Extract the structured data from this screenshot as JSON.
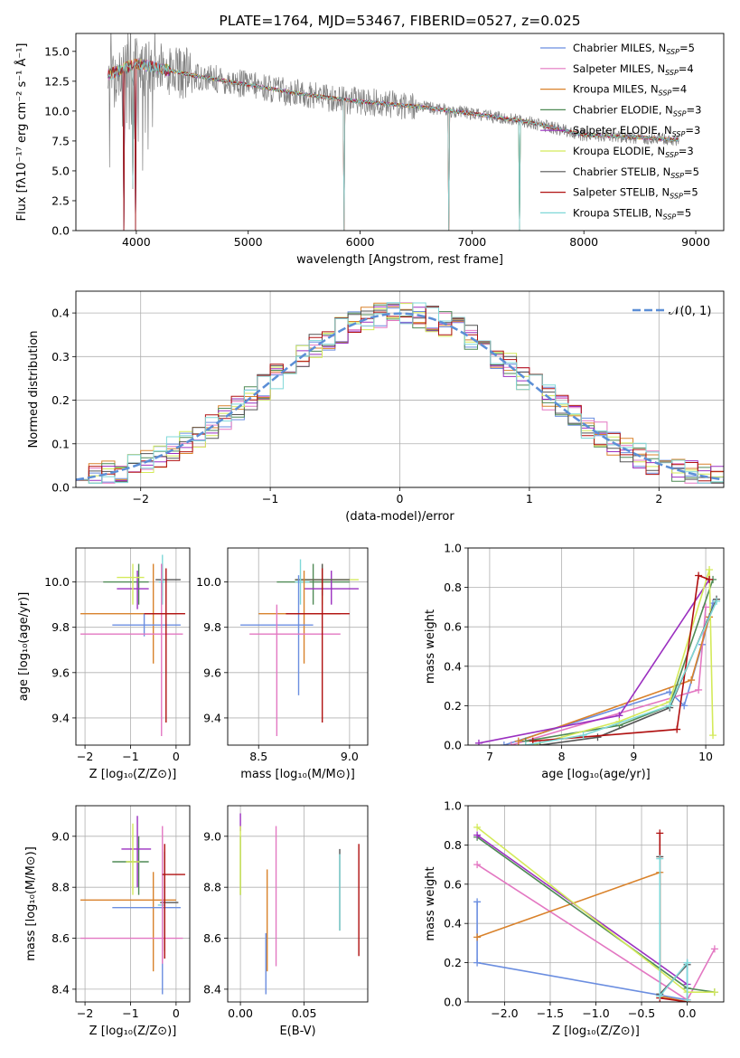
{
  "chart_data": [
    {
      "id": "spectrum",
      "type": "line",
      "title": "PLATE=1764, MJD=53467, FIBERID=0527, z=0.025",
      "xlabel": "wavelength [Angstrom, rest frame]",
      "ylabel": "Flux [fλ10⁻¹⁷ erg cm⁻² s⁻¹ Å⁻¹]",
      "xlim": [
        3460,
        9250
      ],
      "ylim": [
        0,
        16.5
      ],
      "xticks": [
        4000,
        5000,
        6000,
        7000,
        8000,
        9000
      ],
      "yticks": [
        0.0,
        2.5,
        5.0,
        7.5,
        10.0,
        12.5,
        15.0
      ],
      "legend_loc": "upper right",
      "continuum": {
        "x": [
          3740,
          3850,
          4000,
          4200,
          4500,
          5000,
          5500,
          6000,
          6500,
          7000,
          7500,
          8000,
          8500,
          8850
        ],
        "y": [
          13.0,
          13.4,
          14.0,
          13.6,
          13.0,
          12.2,
          11.4,
          10.8,
          10.4,
          9.8,
          9.1,
          8.0,
          7.8,
          7.6
        ]
      },
      "dips": [
        {
          "x": 3890,
          "to": 0
        },
        {
          "x": 3970,
          "to": 3.5
        },
        {
          "x": 3995,
          "to": 0
        },
        {
          "x": 5860,
          "to": 0
        },
        {
          "x": 6790,
          "to": 0
        },
        {
          "x": 7425,
          "to": 0
        }
      ],
      "series": [
        {
          "name": "Chabrier MILES, N_SSP=5",
          "label": "Chabrier MILES, N",
          "sub": "SSP",
          "eq": "=5",
          "color": "#6b8ee0"
        },
        {
          "name": "Salpeter MILES, N_SSP=4",
          "label": "Salpeter MILES, N",
          "sub": "SSP",
          "eq": "=4",
          "color": "#e377c2"
        },
        {
          "name": "Kroupa MILES, N_SSP=4",
          "label": "Kroupa MILES, N",
          "sub": "SSP",
          "eq": "=4",
          "color": "#d9822b"
        },
        {
          "name": "Chabrier ELODIE, N_SSP=3",
          "label": "Chabrier ELODIE, N",
          "sub": "SSP",
          "eq": "=3",
          "color": "#4f8a55"
        },
        {
          "name": "Salpeter ELODIE, N_SSP=3",
          "label": "Salpeter ELODIE, N",
          "sub": "SSP",
          "eq": "=3",
          "color": "#9b30c0"
        },
        {
          "name": "Kroupa ELODIE, N_SSP=3",
          "label": "Kroupa ELODIE, N",
          "sub": "SSP",
          "eq": "=3",
          "color": "#d4ea5a"
        },
        {
          "name": "Chabrier STELIB, N_SSP=5",
          "label": "Chabrier STELIB, N",
          "sub": "SSP",
          "eq": "=5",
          "color": "#555555"
        },
        {
          "name": "Salpeter STELIB, N_SSP=5",
          "label": "Salpeter STELIB, N",
          "sub": "SSP",
          "eq": "=5",
          "color": "#b01010"
        },
        {
          "name": "Kroupa STELIB, N_SSP=5",
          "label": "Kroupa STELIB, N",
          "sub": "SSP",
          "eq": "=5",
          "color": "#7fd8d8"
        }
      ],
      "data_color": "#808080"
    },
    {
      "id": "residuals",
      "type": "step",
      "xlabel": "(data-model)/error",
      "ylabel": "Normed distribution",
      "xlim": [
        -2.5,
        2.5
      ],
      "ylim": [
        0,
        0.45
      ],
      "xticks": [
        -2,
        -1,
        0,
        1,
        2
      ],
      "yticks": [
        0.0,
        0.1,
        0.2,
        0.3,
        0.4
      ],
      "grid": true,
      "legend": "𝒩(0, 1)",
      "normal_color": "#5b8ed6"
    },
    {
      "id": "age_vs_Z",
      "type": "errorbar",
      "xlabel": "Z [log₁₀(Z/Z⊙)]",
      "ylabel": "age  [log₁₀(age/yr)]",
      "xlim": [
        -2.2,
        0.3
      ],
      "ylim": [
        9.28,
        10.15
      ],
      "xticks": [
        -2,
        -1,
        0
      ],
      "yticks": [
        9.4,
        9.6,
        9.8,
        10.0
      ],
      "grid": true,
      "points": [
        {
          "x": -0.82,
          "xlo": -1.6,
          "xhi": -0.6,
          "y": 10.0,
          "ylo": 9.9,
          "yhi": 10.08,
          "c": "#4f8a55"
        },
        {
          "x": -0.85,
          "xlo": -1.3,
          "xhi": -0.6,
          "y": 9.97,
          "ylo": 9.88,
          "yhi": 10.05,
          "c": "#9b30c0"
        },
        {
          "x": -0.95,
          "xlo": -1.3,
          "xhi": -0.7,
          "y": 10.02,
          "ylo": 9.9,
          "yhi": 10.08,
          "c": "#d4ea5a"
        },
        {
          "x": -0.3,
          "xlo": -0.45,
          "xhi": 0.1,
          "y": 10.01,
          "ylo": 9.94,
          "yhi": 10.08,
          "c": "#555555"
        },
        {
          "x": -0.3,
          "xlo": -0.38,
          "xhi": -0.25,
          "y": 10.0,
          "ylo": 9.9,
          "yhi": 10.12,
          "c": "#7fd8d8"
        },
        {
          "x": -0.5,
          "xlo": -2.1,
          "xhi": 0.0,
          "y": 9.86,
          "ylo": 9.64,
          "yhi": 10.08,
          "c": "#d9822b"
        },
        {
          "x": -0.7,
          "xlo": -1.4,
          "xhi": 0.1,
          "y": 9.81,
          "ylo": 9.76,
          "yhi": 9.86,
          "c": "#6b8ee0"
        },
        {
          "x": -0.32,
          "xlo": -2.1,
          "xhi": 0.15,
          "y": 9.77,
          "ylo": 9.32,
          "yhi": 10.08,
          "c": "#e377c2"
        },
        {
          "x": -0.22,
          "xlo": -0.7,
          "xhi": 0.2,
          "y": 9.86,
          "ylo": 9.38,
          "yhi": 10.06,
          "c": "#b01010"
        }
      ]
    },
    {
      "id": "age_vs_mass",
      "type": "errorbar",
      "xlabel": "mass [log₁₀(M/M⊙)]",
      "ylabel": "",
      "xlim": [
        8.33,
        9.1
      ],
      "ylim": [
        9.28,
        10.15
      ],
      "xticks": [
        8.5,
        9.0
      ],
      "yticks": [
        9.4,
        9.6,
        9.8,
        10.0
      ],
      "grid": true,
      "points": [
        {
          "x": 8.8,
          "xlo": 8.6,
          "xhi": 9.0,
          "y": 10.0,
          "ylo": 9.9,
          "yhi": 10.08,
          "c": "#4f8a55"
        },
        {
          "x": 8.9,
          "xlo": 8.75,
          "xhi": 9.05,
          "y": 9.97,
          "ylo": 9.9,
          "yhi": 10.05,
          "c": "#9b30c0"
        },
        {
          "x": 8.85,
          "xlo": 8.7,
          "xhi": 9.05,
          "y": 10.01,
          "ylo": 9.9,
          "yhi": 10.08,
          "c": "#d4ea5a"
        },
        {
          "x": 8.85,
          "xlo": 8.7,
          "xhi": 9.0,
          "y": 10.01,
          "ylo": 9.94,
          "yhi": 10.08,
          "c": "#555555"
        },
        {
          "x": 8.73,
          "xlo": 8.7,
          "xhi": 8.78,
          "y": 10.0,
          "ylo": 9.9,
          "yhi": 10.1,
          "c": "#7fd8d8"
        },
        {
          "x": 8.75,
          "xlo": 8.5,
          "xhi": 8.95,
          "y": 9.86,
          "ylo": 9.64,
          "yhi": 10.05,
          "c": "#d9822b"
        },
        {
          "x": 8.72,
          "xlo": 8.4,
          "xhi": 8.8,
          "y": 9.81,
          "ylo": 9.5,
          "yhi": 10.03,
          "c": "#6b8ee0"
        },
        {
          "x": 8.6,
          "xlo": 8.45,
          "xhi": 8.95,
          "y": 9.77,
          "ylo": 9.32,
          "yhi": 9.9,
          "c": "#e377c2"
        },
        {
          "x": 8.85,
          "xlo": 8.65,
          "xhi": 9.0,
          "y": 9.86,
          "ylo": 9.38,
          "yhi": 10.06,
          "c": "#b01010"
        }
      ]
    },
    {
      "id": "mass_weight_vs_age",
      "type": "line",
      "xlabel": "age  [log₁₀(age/yr)]",
      "ylabel": "mass weight",
      "xlim": [
        6.7,
        10.25
      ],
      "ylim": [
        0,
        1.0
      ],
      "xticks": [
        7,
        8,
        9,
        10
      ],
      "yticks": [
        0.0,
        0.2,
        0.4,
        0.6,
        0.8,
        1.0
      ],
      "grid": true,
      "series": [
        {
          "c": "#6b8ee0",
          "x": [
            7.2,
            9.5,
            9.7,
            9.95,
            10.1
          ],
          "y": [
            0.0,
            0.27,
            0.2,
            0.51,
            0.72
          ]
        },
        {
          "c": "#e377c2",
          "x": [
            7.3,
            9.9,
            10.0
          ],
          "y": [
            0.0,
            0.28,
            0.7
          ]
        },
        {
          "c": "#d9822b",
          "x": [
            7.4,
            9.8,
            10.05
          ],
          "y": [
            0.02,
            0.33,
            0.65
          ]
        },
        {
          "c": "#4f8a55",
          "x": [
            7.5,
            8.8,
            9.5,
            10.1
          ],
          "y": [
            0.02,
            0.1,
            0.2,
            0.84
          ]
        },
        {
          "c": "#9b30c0",
          "x": [
            6.85,
            8.8,
            10.05
          ],
          "y": [
            0.01,
            0.15,
            0.84
          ]
        },
        {
          "c": "#d4ea5a",
          "x": [
            7.6,
            8.8,
            9.5,
            10.05,
            10.1
          ],
          "y": [
            0.0,
            0.12,
            0.22,
            0.89,
            0.05
          ]
        },
        {
          "c": "#555555",
          "x": [
            7.7,
            8.5,
            9.5,
            10.15
          ],
          "y": [
            0.0,
            0.04,
            0.19,
            0.74
          ]
        },
        {
          "c": "#b01010",
          "x": [
            7.6,
            9.6,
            9.9,
            10.05
          ],
          "y": [
            0.02,
            0.08,
            0.86,
            0.84
          ]
        },
        {
          "c": "#7fd8d8",
          "x": [
            7.5,
            8.3,
            9.5,
            10.15
          ],
          "y": [
            0.0,
            0.05,
            0.2,
            0.73
          ]
        }
      ]
    },
    {
      "id": "mass_vs_Z",
      "type": "errorbar",
      "xlabel": "Z [log₁₀(Z/Z⊙)]",
      "ylabel": "mass [log₁₀(M/M⊙)]",
      "xlim": [
        -2.2,
        0.3
      ],
      "ylim": [
        8.35,
        9.12
      ],
      "xticks": [
        -2,
        -1,
        0
      ],
      "yticks": [
        8.4,
        8.6,
        8.8,
        9.0
      ],
      "grid": true,
      "points": [
        {
          "x": -0.82,
          "xlo": -1.4,
          "xhi": -0.6,
          "y": 8.9,
          "ylo": 8.77,
          "yhi": 9.0,
          "c": "#4f8a55"
        },
        {
          "x": -0.85,
          "xlo": -1.2,
          "xhi": -0.55,
          "y": 8.95,
          "ylo": 8.8,
          "yhi": 9.08,
          "c": "#9b30c0"
        },
        {
          "x": -0.95,
          "xlo": -1.1,
          "xhi": -0.8,
          "y": 8.9,
          "ylo": 8.77,
          "yhi": 9.05,
          "c": "#d4ea5a"
        },
        {
          "x": -0.25,
          "xlo": -0.35,
          "xhi": 0.05,
          "y": 8.74,
          "ylo": 8.55,
          "yhi": 8.94,
          "c": "#555555"
        },
        {
          "x": -0.3,
          "xlo": -0.4,
          "xhi": -0.25,
          "y": 8.73,
          "ylo": 8.62,
          "yhi": 8.95,
          "c": "#7fd8d8"
        },
        {
          "x": -0.5,
          "xlo": -2.1,
          "xhi": 0.0,
          "y": 8.75,
          "ylo": 8.47,
          "yhi": 8.86,
          "c": "#d9822b"
        },
        {
          "x": -0.3,
          "xlo": -1.4,
          "xhi": 0.1,
          "y": 8.72,
          "ylo": 8.38,
          "yhi": 8.75,
          "c": "#6b8ee0"
        },
        {
          "x": -0.3,
          "xlo": -2.1,
          "xhi": 0.15,
          "y": 8.6,
          "ylo": 8.5,
          "yhi": 9.04,
          "c": "#e377c2"
        },
        {
          "x": -0.25,
          "xlo": -0.3,
          "xhi": 0.2,
          "y": 8.85,
          "ylo": 8.52,
          "yhi": 8.97,
          "c": "#b01010"
        }
      ]
    },
    {
      "id": "mass_vs_ebv",
      "type": "errorbar",
      "xlabel": "E(B-V)",
      "ylabel": "",
      "xlim": [
        -0.01,
        0.1
      ],
      "ylim": [
        8.35,
        9.12
      ],
      "xticks": [
        0.0,
        0.05
      ],
      "yticks": [
        8.4,
        8.6,
        8.8,
        9.0
      ],
      "grid": true,
      "points": [
        {
          "x": 0.0,
          "xlo": 0.0,
          "xhi": 0.0,
          "y": 8.9,
          "ylo": 8.77,
          "yhi": 9.0,
          "c": "#4f8a55"
        },
        {
          "x": 0.0,
          "xlo": 0.0,
          "xhi": 0.0,
          "y": 9.05,
          "ylo": 9.02,
          "yhi": 9.09,
          "c": "#9b30c0"
        },
        {
          "x": 0.0,
          "xlo": 0.0,
          "xhi": 0.0,
          "y": 8.9,
          "ylo": 8.77,
          "yhi": 9.04,
          "c": "#d4ea5a"
        },
        {
          "x": 0.078,
          "xlo": 0.078,
          "xhi": 0.078,
          "y": 8.8,
          "ylo": 8.63,
          "yhi": 8.95,
          "c": "#555555"
        },
        {
          "x": 0.078,
          "xlo": 0.078,
          "xhi": 0.078,
          "y": 8.78,
          "ylo": 8.63,
          "yhi": 8.93,
          "c": "#7fd8d8"
        },
        {
          "x": 0.021,
          "xlo": 0.021,
          "xhi": 0.021,
          "y": 8.65,
          "ylo": 8.47,
          "yhi": 8.87,
          "c": "#d9822b"
        },
        {
          "x": 0.02,
          "xlo": 0.02,
          "xhi": 0.02,
          "y": 8.5,
          "ylo": 8.38,
          "yhi": 8.62,
          "c": "#6b8ee0"
        },
        {
          "x": 0.028,
          "xlo": 0.028,
          "xhi": 0.028,
          "y": 8.7,
          "ylo": 8.49,
          "yhi": 9.04,
          "c": "#e377c2"
        },
        {
          "x": 0.093,
          "xlo": 0.093,
          "xhi": 0.093,
          "y": 8.75,
          "ylo": 8.53,
          "yhi": 8.97,
          "c": "#b01010"
        }
      ]
    },
    {
      "id": "mass_weight_vs_Z",
      "type": "line",
      "xlabel": "Z [log₁₀(Z/Z⊙)]",
      "ylabel": "mass weight",
      "xlim": [
        -2.4,
        0.4
      ],
      "ylim": [
        0,
        1.0
      ],
      "xticks": [
        -2.0,
        -1.5,
        -1.0,
        -0.5,
        0.0
      ],
      "yticks": [
        0.0,
        0.2,
        0.4,
        0.6,
        0.8,
        1.0
      ],
      "grid": true,
      "series": [
        {
          "c": "#6b8ee0",
          "x": [
            -2.3,
            -2.3,
            0.0,
            0.0
          ],
          "y": [
            0.51,
            0.2,
            0.01,
            0.2
          ]
        },
        {
          "c": "#e377c2",
          "x": [
            -2.3,
            0.0,
            0.3
          ],
          "y": [
            0.7,
            0.01,
            0.27
          ]
        },
        {
          "c": "#d9822b",
          "x": [
            -2.3,
            -0.3,
            -0.3,
            0.0
          ],
          "y": [
            0.33,
            0.66,
            0.03,
            0.0
          ]
        },
        {
          "c": "#4f8a55",
          "x": [
            -2.3,
            0.0,
            0.3
          ],
          "y": [
            0.84,
            0.07,
            0.05
          ]
        },
        {
          "c": "#9b30c0",
          "x": [
            -2.3,
            0.0
          ],
          "y": [
            0.85,
            0.09
          ]
        },
        {
          "c": "#d4ea5a",
          "x": [
            -2.3,
            0.0,
            0.3
          ],
          "y": [
            0.89,
            0.05,
            0.05
          ]
        },
        {
          "c": "#555555",
          "x": [
            -0.3,
            -0.3,
            0.0
          ],
          "y": [
            0.74,
            0.04,
            0.19
          ]
        },
        {
          "c": "#b01010",
          "x": [
            -0.3,
            -0.3,
            0.0
          ],
          "y": [
            0.86,
            0.02,
            0.0
          ]
        },
        {
          "c": "#7fd8d8",
          "x": [
            -0.3,
            -0.3,
            0.0,
            0.0
          ],
          "y": [
            0.73,
            0.03,
            0.2,
            0.01
          ]
        }
      ]
    }
  ]
}
